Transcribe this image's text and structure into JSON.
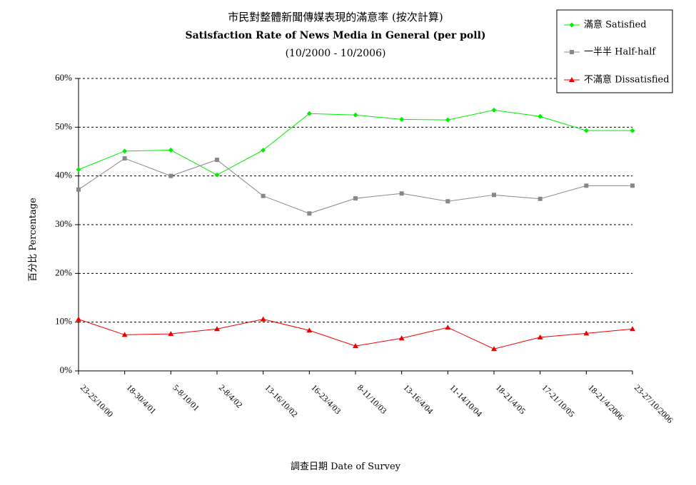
{
  "chart_data": {
    "type": "line",
    "title_zh": "市民對整體新聞傳媒表現的滿意率 (按次計算)",
    "title": "Satisfaction Rate of News Media in General (per poll)",
    "subtitle": "(10/2000 - 10/2006)",
    "xlabel": "調查日期 Date of Survey",
    "ylabel": "百分比 Percentage",
    "ylim": [
      0,
      60
    ],
    "yticks": [
      0,
      10,
      20,
      30,
      40,
      50,
      60
    ],
    "ytick_labels": [
      "0%",
      "10%",
      "20%",
      "30%",
      "40%",
      "50%",
      "60%"
    ],
    "grid": "horizontal-dashed",
    "legend_position": "top-right",
    "categories": [
      "23-25/10/00",
      "18-30/4/01",
      "5-8/10/01",
      "2-8/4/02",
      "13-16/10/02",
      "16-23/4/03",
      "8-11/10/03",
      "13-16/4/04",
      "11-14/10/04",
      "18-21/4/05",
      "17-21/10/05",
      "18-21/4/2006",
      "23-27/10/2006"
    ],
    "series": [
      {
        "name": "滿意 Satisfied",
        "color": "#00ee00",
        "marker": "diamond",
        "values": [
          41.3,
          45.1,
          45.3,
          40.2,
          45.3,
          52.8,
          52.5,
          51.6,
          51.5,
          53.5,
          52.2,
          49.3,
          49.3
        ]
      },
      {
        "name": "一半半 Half-half",
        "color": "#888888",
        "marker": "square",
        "values": [
          37.2,
          43.6,
          40.0,
          43.3,
          35.9,
          32.3,
          35.4,
          36.4,
          34.8,
          36.1,
          35.3,
          38.0,
          38.0
        ]
      },
      {
        "name": "不滿意 Dissatisfied",
        "color": "#ee0000",
        "marker": "triangle",
        "values": [
          10.6,
          7.4,
          7.6,
          8.6,
          10.6,
          8.3,
          5.1,
          6.7,
          8.9,
          4.5,
          6.9,
          7.7,
          8.6
        ]
      }
    ]
  }
}
